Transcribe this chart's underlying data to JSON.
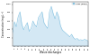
{
  "title": "",
  "xlabel": "Waste discharges",
  "ylabel": "Concentration (mg.L⁻¹)",
  "ylim": [
    0,
    1050
  ],
  "xlim": [
    1,
    42
  ],
  "yticks": [
    200,
    400,
    600,
    800,
    1000
  ],
  "ytick_labels": [
    "200",
    "400",
    "600",
    "800",
    "1000"
  ],
  "line_color": "#7fbfdf",
  "fill_color": "#b8d9ee",
  "values": [
    320,
    580,
    460,
    700,
    820,
    520,
    390,
    480,
    560,
    350,
    420,
    600,
    510,
    460,
    680,
    750,
    820,
    560,
    480,
    420,
    820,
    950,
    780,
    650,
    820,
    700,
    480,
    380,
    340,
    300,
    260,
    220,
    280,
    200,
    160,
    180,
    140,
    150,
    130,
    160,
    140,
    120
  ],
  "legend_label": "COD (mg/L)",
  "legend_color": "#7fbfdf"
}
